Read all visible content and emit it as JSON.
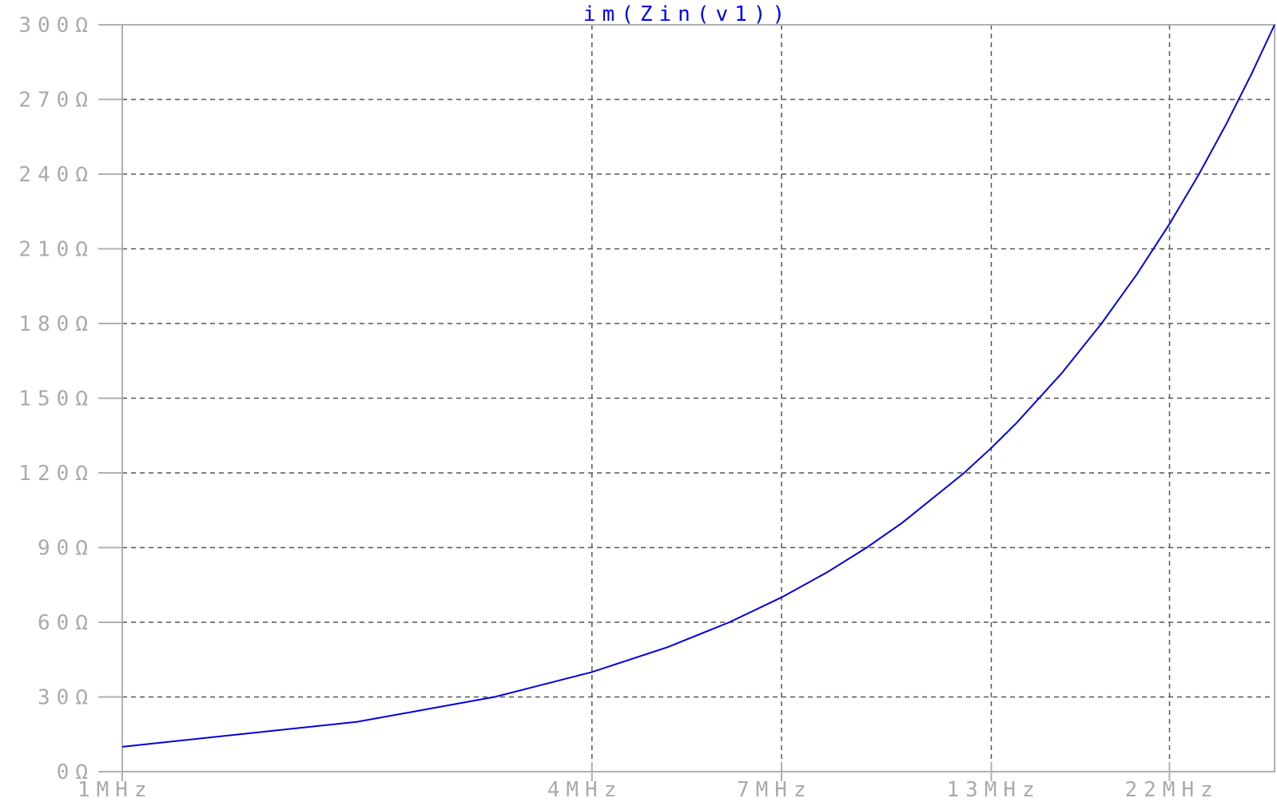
{
  "chart_data": {
    "type": "line",
    "title": "im(Zin(v1))",
    "xscale": "log",
    "xlim": [
      1,
      30
    ],
    "ylim": [
      0,
      300
    ],
    "x_ticks": [
      {
        "value": 1,
        "label": "1MHz"
      },
      {
        "value": 4,
        "label": "4MHz"
      },
      {
        "value": 7,
        "label": "7MHz"
      },
      {
        "value": 13,
        "label": "13MHz"
      },
      {
        "value": 22,
        "label": "22MHz"
      }
    ],
    "y_ticks": [
      {
        "value": 0,
        "label": "0Ω"
      },
      {
        "value": 30,
        "label": "30Ω"
      },
      {
        "value": 60,
        "label": "60Ω"
      },
      {
        "value": 90,
        "label": "90Ω"
      },
      {
        "value": 120,
        "label": "120Ω"
      },
      {
        "value": 150,
        "label": "150Ω"
      },
      {
        "value": 180,
        "label": "180Ω"
      },
      {
        "value": 210,
        "label": "210Ω"
      },
      {
        "value": 240,
        "label": "240Ω"
      },
      {
        "value": 270,
        "label": "270Ω"
      },
      {
        "value": 300,
        "label": "300Ω"
      }
    ],
    "grid": true,
    "series": [
      {
        "color": "#0000dd",
        "x": [
          1,
          2,
          3,
          4,
          5,
          6,
          7,
          8,
          9,
          10,
          12,
          13,
          14,
          16,
          18,
          20,
          22,
          24,
          26,
          28,
          30
        ],
        "y": [
          10,
          20,
          30,
          40,
          50,
          60,
          70,
          80,
          90,
          100,
          120,
          130,
          140,
          160,
          180,
          200,
          220,
          240,
          260,
          280,
          300
        ]
      }
    ]
  },
  "colors": {
    "title": "#0000ee",
    "curve": "#0000dd",
    "axis_text": "#aaaaaa",
    "grid": "#555555",
    "frame": "#b0b0b0"
  }
}
